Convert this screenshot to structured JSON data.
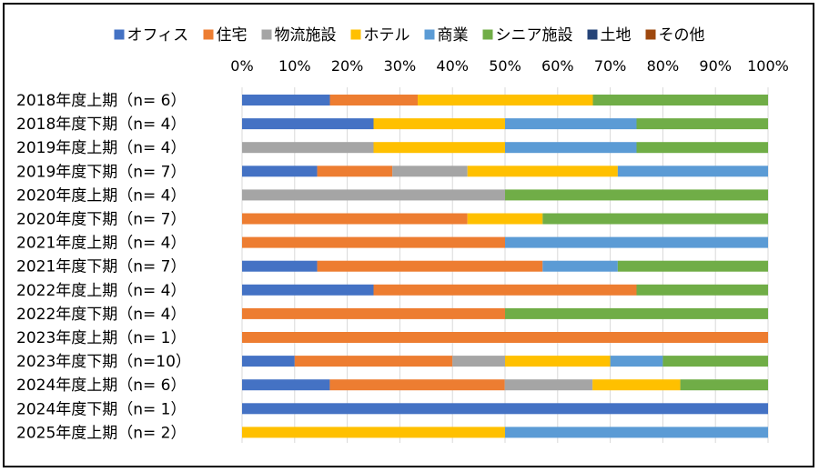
{
  "chart_data": {
    "type": "bar",
    "orientation": "horizontal",
    "stacked": "percent",
    "title": "",
    "xlabel": "",
    "ylabel": "",
    "xlim": [
      0,
      100
    ],
    "x_ticks": [
      "0%",
      "10%",
      "20%",
      "30%",
      "40%",
      "50%",
      "60%",
      "70%",
      "80%",
      "90%",
      "100%"
    ],
    "grid": true,
    "legend_position": "top",
    "categories": [
      "2018年度上期（n= 6）",
      "2018年度下期（n= 4）",
      "2019年度上期（n= 4）",
      "2019年度下期（n= 7）",
      "2020年度上期（n= 4）",
      "2020年度下期（n= 7）",
      "2021年度上期（n= 4）",
      "2021年度下期（n= 7）",
      "2022年度上期（n= 4）",
      "2022年度下期（n= 4）",
      "2023年度上期（n= 1）",
      "2023年度下期（n=10）",
      "2024年度上期（n= 6）",
      "2024年度下期（n= 1）",
      "2025年度上期（n= 2）"
    ],
    "series": [
      {
        "name": "オフィス",
        "color": "#4472C4",
        "values": [
          16.7,
          25,
          0,
          14.3,
          0,
          0,
          0,
          14.3,
          25,
          0,
          0,
          10,
          16.7,
          100,
          0
        ]
      },
      {
        "name": "住宅",
        "color": "#ED7D31",
        "values": [
          16.7,
          0,
          0,
          14.3,
          0,
          42.9,
          50,
          42.9,
          50,
          50,
          100,
          30,
          33.3,
          0,
          0
        ]
      },
      {
        "name": "物流施設",
        "color": "#A5A5A5",
        "values": [
          0,
          0,
          25,
          14.3,
          50,
          0,
          0,
          0,
          0,
          0,
          0,
          10,
          16.7,
          0,
          0
        ]
      },
      {
        "name": "ホテル",
        "color": "#FFC000",
        "values": [
          33.3,
          25,
          25,
          28.6,
          0,
          14.3,
          0,
          0,
          0,
          0,
          0,
          20,
          16.7,
          0,
          50
        ]
      },
      {
        "name": "商業",
        "color": "#5B9BD5",
        "values": [
          0,
          25,
          25,
          28.6,
          0,
          0,
          50,
          14.3,
          0,
          0,
          0,
          10,
          0,
          0,
          50
        ]
      },
      {
        "name": "シニア施設",
        "color": "#70AD47",
        "values": [
          33.3,
          25,
          25,
          0,
          50,
          42.9,
          0,
          28.6,
          25,
          50,
          0,
          20,
          16.7,
          0,
          0
        ]
      },
      {
        "name": "土地",
        "color": "#264478",
        "values": [
          0,
          0,
          0,
          0,
          0,
          0,
          0,
          0,
          0,
          0,
          0,
          0,
          0,
          0,
          0
        ]
      },
      {
        "name": "その他",
        "color": "#9E480E",
        "values": [
          0,
          0,
          0,
          0,
          0,
          0,
          0,
          0,
          0,
          0,
          0,
          0,
          0,
          0,
          0
        ]
      }
    ]
  }
}
